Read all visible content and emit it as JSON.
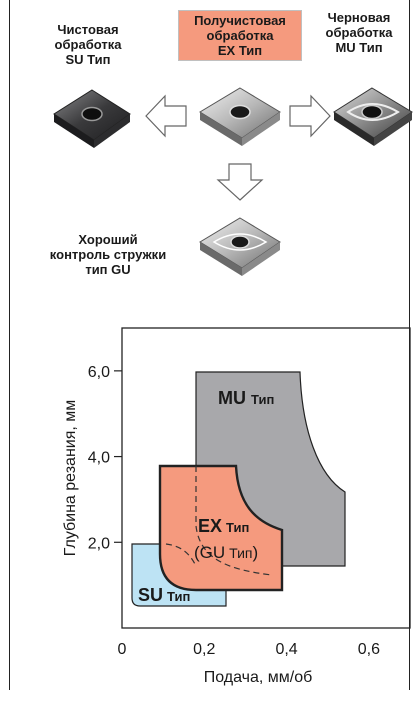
{
  "inserts": {
    "finishing": {
      "lines": [
        "Чистовая",
        "обработка",
        "SU Тип"
      ]
    },
    "semi_finishing": {
      "lines": [
        "Получистовая",
        "обработка",
        "EX Тип"
      ],
      "highlight": "#f59a7e"
    },
    "roughing": {
      "lines": [
        "Черновая",
        "обработка",
        "MU Тип"
      ]
    },
    "chip_control": {
      "lines": [
        "Хороший",
        "контроль стружки",
        "тип GU"
      ]
    }
  },
  "chart_data": {
    "type": "area",
    "xlabel": "Подача, мм/об",
    "ylabel": "Глубина резания, мм",
    "xlim": [
      0,
      0.7
    ],
    "ylim": [
      0,
      7
    ],
    "x_ticks": [
      "0",
      "0,2",
      "0,4",
      "0,6"
    ],
    "y_ticks": [
      "2,0",
      "4,0",
      "6,0"
    ],
    "regions": [
      {
        "code": "MU",
        "suffix": "Тип",
        "color": "#a8a8ab"
      },
      {
        "code": "EX",
        "suffix": "Тип",
        "color": "#f59a7e"
      },
      {
        "code": "GU",
        "suffix": "Тип",
        "dashed": true
      },
      {
        "code": "SU",
        "suffix": "Тип",
        "color": "#bde3f4"
      }
    ]
  }
}
